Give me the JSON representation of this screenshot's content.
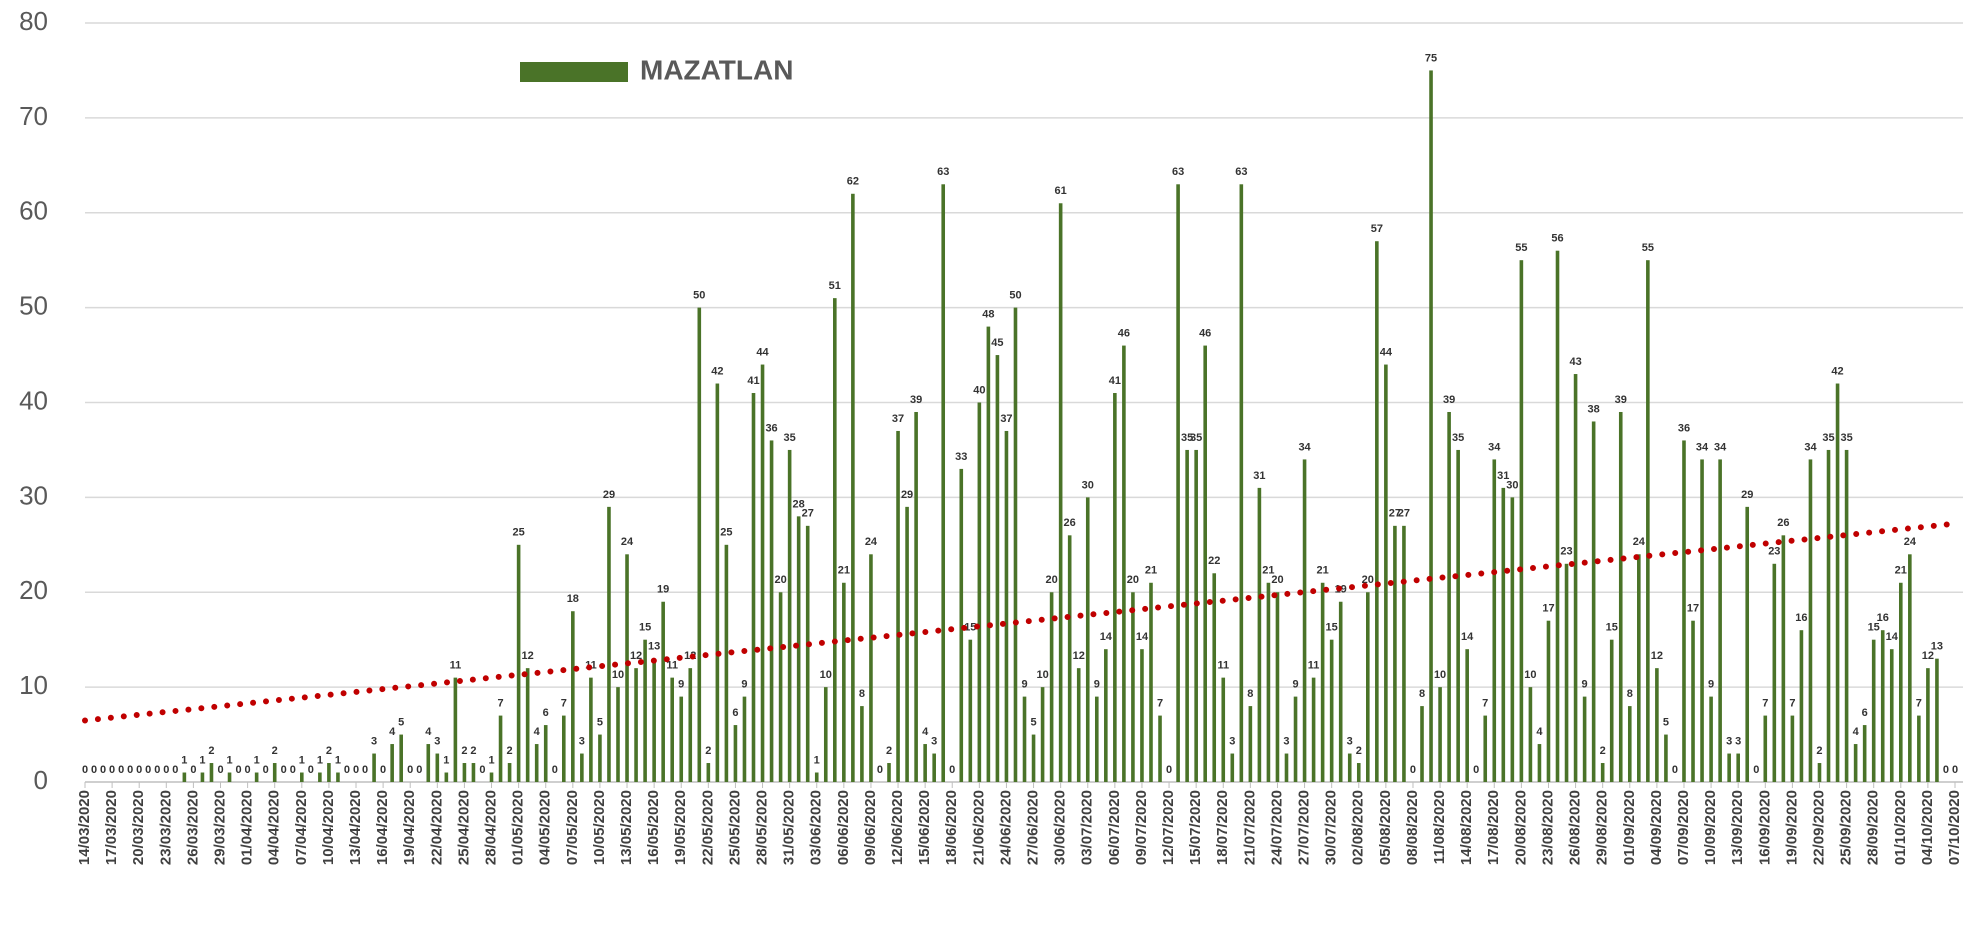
{
  "chart_data": {
    "type": "bar",
    "categories": [
      "14/03/2020",
      null,
      null,
      "17/03/2020",
      null,
      null,
      "20/03/2020",
      null,
      null,
      "23/03/2020",
      null,
      null,
      "26/03/2020",
      null,
      null,
      "29/03/2020",
      null,
      null,
      "01/04/2020",
      null,
      null,
      "04/04/2020",
      null,
      null,
      "07/04/2020",
      null,
      null,
      "10/04/2020",
      null,
      null,
      "13/04/2020",
      null,
      null,
      "16/04/2020",
      null,
      null,
      "19/04/2020",
      null,
      null,
      "22/04/2020",
      null,
      null,
      "25/04/2020",
      null,
      null,
      "28/04/2020",
      null,
      null,
      "01/05/2020",
      null,
      null,
      "04/05/2020",
      null,
      null,
      "07/05/2020",
      null,
      null,
      "10/05/2020",
      null,
      null,
      "13/05/2020",
      null,
      null,
      "16/05/2020",
      null,
      null,
      "19/05/2020",
      null,
      null,
      "22/05/2020",
      null,
      null,
      "25/05/2020",
      null,
      null,
      "28/05/2020",
      null,
      null,
      "31/05/2020",
      null,
      null,
      "03/06/2020",
      null,
      null,
      "06/06/2020",
      null,
      null,
      "09/06/2020",
      null,
      null,
      "12/06/2020",
      null,
      null,
      "15/06/2020",
      null,
      null,
      "18/06/2020",
      null,
      null,
      "21/06/2020",
      null,
      null,
      "24/06/2020",
      null,
      null,
      "27/06/2020",
      null,
      null,
      "30/06/2020",
      null,
      null,
      "03/07/2020",
      null,
      null,
      "06/07/2020",
      null,
      null,
      "09/07/2020",
      null,
      null,
      "12/07/2020",
      null,
      null,
      "15/07/2020",
      null,
      null,
      "18/07/2020",
      null,
      null,
      "21/07/2020",
      null,
      null,
      "24/07/2020",
      null,
      null,
      "27/07/2020",
      null,
      null,
      "30/07/2020",
      null,
      null,
      "02/08/2020",
      null,
      null,
      "05/08/2020",
      null,
      null,
      "08/08/2020",
      null,
      null,
      "11/08/2020",
      null,
      null,
      "14/08/2020",
      null,
      null,
      "17/08/2020",
      null,
      null,
      "20/08/2020",
      null,
      null,
      "23/08/2020",
      null,
      null,
      "26/08/2020",
      null,
      null,
      "29/08/2020",
      null,
      null,
      "01/09/2020",
      null,
      null,
      "04/09/2020",
      null,
      null,
      "07/09/2020",
      null,
      null,
      "10/09/2020",
      null,
      null,
      "13/09/2020",
      null,
      null,
      "16/09/2020",
      null,
      null,
      "19/09/2020",
      null,
      null,
      "22/09/2020",
      null,
      null,
      "25/09/2020",
      null,
      null,
      "28/09/2020",
      null,
      null,
      "01/10/2020",
      null,
      null,
      "04/10/2020",
      null,
      null,
      "07/10/2020"
    ],
    "series": [
      {
        "name": "MAZATLAN",
        "color": "#4a7328",
        "values": [
          0,
          0,
          0,
          0,
          0,
          0,
          0,
          0,
          0,
          0,
          0,
          1,
          0,
          1,
          2,
          0,
          1,
          0,
          0,
          1,
          0,
          2,
          0,
          0,
          1,
          0,
          1,
          2,
          1,
          0,
          0,
          0,
          3,
          0,
          4,
          5,
          0,
          0,
          4,
          3,
          1,
          11,
          2,
          2,
          0,
          1,
          7,
          2,
          25,
          12,
          4,
          6,
          0,
          7,
          18,
          3,
          11,
          5,
          29,
          10,
          24,
          12,
          15,
          13,
          19,
          11,
          9,
          12,
          50,
          2,
          42,
          25,
          6,
          9,
          41,
          44,
          36,
          20,
          35,
          28,
          27,
          1,
          10,
          51,
          21,
          62,
          8,
          24,
          0,
          2,
          37,
          29,
          39,
          4,
          3,
          63,
          0,
          33,
          15,
          40,
          48,
          45,
          37,
          50,
          9,
          5,
          10,
          20,
          61,
          26,
          12,
          30,
          9,
          14,
          41,
          46,
          20,
          14,
          21,
          7,
          0,
          63,
          35,
          35,
          46,
          22,
          11,
          3,
          63,
          8,
          31,
          21,
          20,
          3,
          9,
          34,
          11,
          21,
          15,
          19,
          3,
          2,
          20,
          57,
          44,
          27,
          27,
          0,
          8,
          75,
          10,
          39,
          35,
          14,
          0,
          7,
          34,
          31,
          30,
          55,
          10,
          4,
          17,
          56,
          23,
          43,
          9,
          38,
          2,
          15,
          39,
          8,
          24,
          55,
          12,
          5,
          0,
          36,
          17,
          34,
          9,
          34,
          3,
          3,
          29,
          0,
          7,
          23,
          26,
          7,
          16,
          34,
          2,
          35,
          42,
          35,
          4,
          6,
          15,
          16,
          14,
          21,
          24,
          7,
          12,
          13,
          0,
          0
        ]
      }
    ],
    "ylim": [
      0,
      80
    ],
    "yticks": [
      0,
      10,
      20,
      30,
      40,
      50,
      60,
      70,
      80
    ],
    "grid": true,
    "legend": "top-left",
    "trendline": {
      "type": "linear",
      "color": "#c00000",
      "style": "dotted"
    }
  }
}
